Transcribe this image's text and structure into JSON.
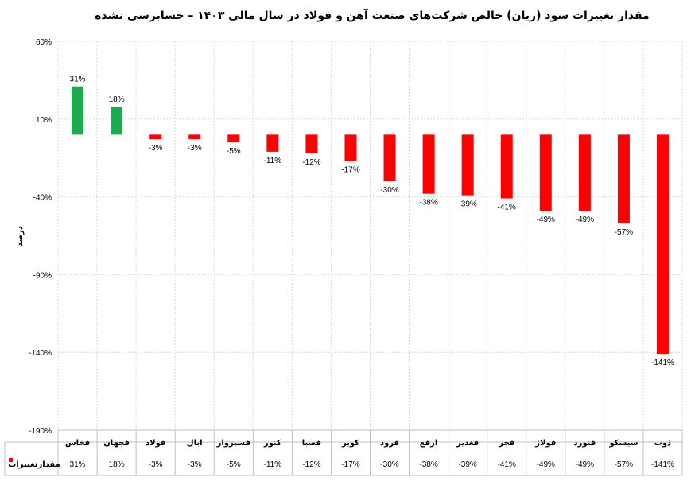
{
  "chart_data": {
    "type": "bar",
    "title": "مقدار تغییرات سود (زیان) خالص شرکت‌های صنعت آهن و فولاد در سال مالی ۱۴۰۳ – حسابرسی نشده",
    "ylabel": "درصد",
    "xlabel": "",
    "ylim": [
      -190,
      60
    ],
    "yticks": [
      60,
      10,
      -40,
      -90,
      -140,
      -190
    ],
    "ytick_labels": [
      "60%",
      "10%",
      "-40%",
      "-90%",
      "-140%",
      "-190%"
    ],
    "categories": [
      "فخاس",
      "فجهان",
      "فولاد",
      "ابال",
      "فسبزوار",
      "کنور",
      "فصبا",
      "کویر",
      "فرود",
      "ارفع",
      "فغدیر",
      "فجر",
      "فولاژ",
      "فنورد",
      "سیسکو",
      "ذوب"
    ],
    "series": [
      {
        "name": "مقدارتغییرات",
        "values": [
          31,
          18,
          -3,
          -3,
          -5,
          -11,
          -12,
          -17,
          -30,
          -38,
          -39,
          -41,
          -49,
          -49,
          -57,
          -141
        ],
        "labels": [
          "31%",
          "18%",
          "-3%",
          "-3%",
          "-5%",
          "-11%",
          "-12%",
          "-17%",
          "-30%",
          "-38%",
          "-39%",
          "-41%",
          "-49%",
          "-49%",
          "-57%",
          "-141%"
        ]
      }
    ],
    "colors": {
      "positive": "#1daa50",
      "negative": "#ff0000"
    },
    "grid": true,
    "legend": "data-table-left"
  }
}
